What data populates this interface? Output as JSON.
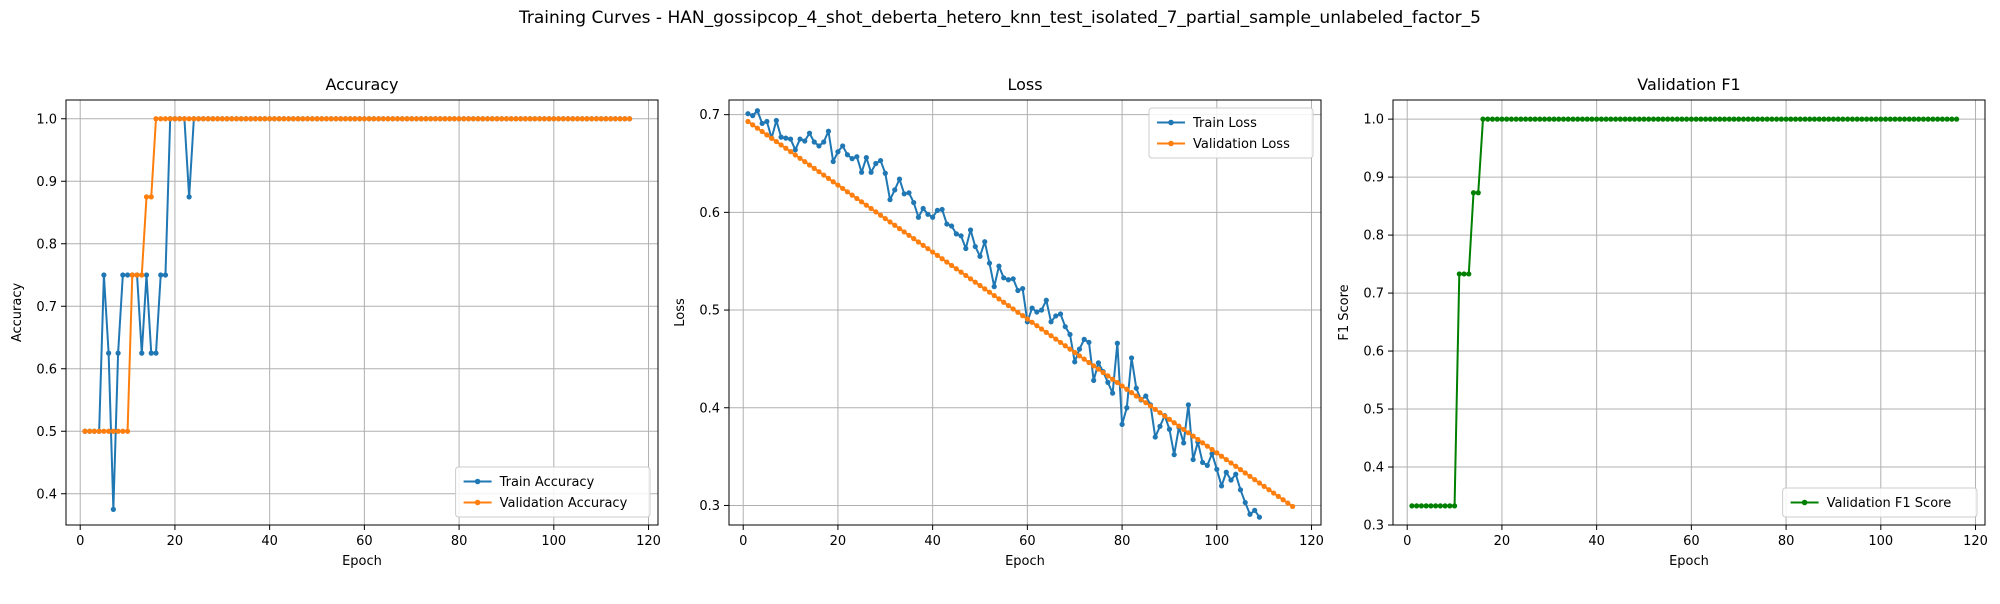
{
  "figure": {
    "suptitle": "Training Curves - HAN_gossipcop_4_shot_deberta_hetero_knn_test_isolated_7_partial_sample_unlabeled_factor_5"
  },
  "chart_data": [
    {
      "type": "line",
      "title": "Accuracy",
      "xlabel": "Epoch",
      "ylabel": "Accuracy",
      "xlim": [
        -3,
        122
      ],
      "ylim": [
        0.35,
        1.03
      ],
      "xticks": [
        0,
        20,
        40,
        60,
        80,
        100,
        120
      ],
      "yticks": [
        0.4,
        0.5,
        0.6,
        0.7,
        0.8,
        0.9,
        1.0
      ],
      "ytick_decimals": 1,
      "grid": true,
      "legend_position": "lower-right",
      "x_range": [
        1,
        116
      ],
      "series": [
        {
          "name": "Train Accuracy",
          "color": "#1f77b4",
          "values": [
            0.5,
            0.5,
            0.5,
            0.5,
            0.75,
            0.625,
            0.375,
            0.625,
            0.75,
            0.75,
            0.75,
            0.75,
            0.625,
            0.75,
            0.625,
            0.625,
            0.75,
            0.75,
            1.0,
            1.0,
            1.0,
            1.0,
            0.875,
            1.0
          ],
          "fill_value_after": 1.0
        },
        {
          "name": "Validation Accuracy",
          "color": "#ff7f0e",
          "values": [
            0.5,
            0.5,
            0.5,
            0.5,
            0.5,
            0.5,
            0.5,
            0.5,
            0.5,
            0.5,
            0.75,
            0.75,
            0.75,
            0.875,
            0.875,
            1.0
          ],
          "fill_value_after": 1.0
        }
      ]
    },
    {
      "type": "line",
      "title": "Loss",
      "xlabel": "Epoch",
      "ylabel": "Loss",
      "xlim": [
        -3,
        122
      ],
      "ylim": [
        0.28,
        0.715
      ],
      "xticks": [
        0,
        20,
        40,
        60,
        80,
        100,
        120
      ],
      "yticks": [
        0.3,
        0.4,
        0.5,
        0.6,
        0.7
      ],
      "ytick_decimals": 1,
      "grid": true,
      "legend_position": "upper-right",
      "x_range": [
        1,
        116
      ],
      "series": [
        {
          "name": "Train Loss",
          "color": "#1f77b4",
          "values": [
            0.701,
            0.699,
            0.704,
            0.691,
            0.693,
            0.676,
            0.694,
            0.677,
            0.676,
            0.675,
            0.664,
            0.675,
            0.673,
            0.681,
            0.672,
            0.668,
            0.672,
            0.683,
            0.652,
            0.662,
            0.668,
            0.659,
            0.655,
            0.657,
            0.641,
            0.656,
            0.641,
            0.65,
            0.653,
            0.64,
            0.613,
            0.623,
            0.634,
            0.619,
            0.62,
            0.61,
            0.595,
            0.604,
            0.598,
            0.595,
            0.602,
            0.603,
            0.588,
            0.586,
            0.578,
            0.576,
            0.563,
            0.582,
            0.565,
            0.555,
            0.57,
            0.548,
            0.524,
            0.545,
            0.533,
            0.531,
            0.532,
            0.52,
            0.522,
            0.488,
            0.502,
            0.498,
            0.5,
            0.51,
            0.488,
            0.494,
            0.496,
            0.483,
            0.475,
            0.447,
            0.46,
            0.47,
            0.467,
            0.428,
            0.446,
            0.437,
            0.426,
            0.415,
            0.466,
            0.383,
            0.4,
            0.451,
            0.42,
            0.408,
            0.412,
            0.403,
            0.37,
            0.381,
            0.392,
            0.378,
            0.352,
            0.38,
            0.364,
            0.403,
            0.347,
            0.365,
            0.344,
            0.341,
            0.353,
            0.337,
            0.32,
            0.334,
            0.326,
            0.332,
            0.316,
            0.303,
            0.291,
            0.295,
            0.288
          ],
          "x_start": 1
        },
        {
          "name": "Validation Loss",
          "color": "#ff7f0e",
          "linear": {
            "start": 0.693,
            "end": 0.299
          },
          "x_start": 1
        }
      ]
    },
    {
      "type": "line",
      "title": "Validation F1",
      "xlabel": "Epoch",
      "ylabel": "F1 Score",
      "xlim": [
        -3,
        122
      ],
      "ylim": [
        0.3,
        1.033
      ],
      "xticks": [
        0,
        20,
        40,
        60,
        80,
        100,
        120
      ],
      "yticks": [
        0.3,
        0.4,
        0.5,
        0.6,
        0.7,
        0.8,
        0.9,
        1.0
      ],
      "ytick_decimals": 1,
      "grid": true,
      "legend_position": "lower-right",
      "x_range": [
        1,
        116
      ],
      "series": [
        {
          "name": "Validation F1 Score",
          "color": "#008000",
          "values": [
            0.333,
            0.333,
            0.333,
            0.333,
            0.333,
            0.333,
            0.333,
            0.333,
            0.333,
            0.333,
            0.733,
            0.733,
            0.733,
            0.873,
            0.873,
            1.0
          ],
          "fill_value_after": 1.0
        }
      ]
    }
  ]
}
